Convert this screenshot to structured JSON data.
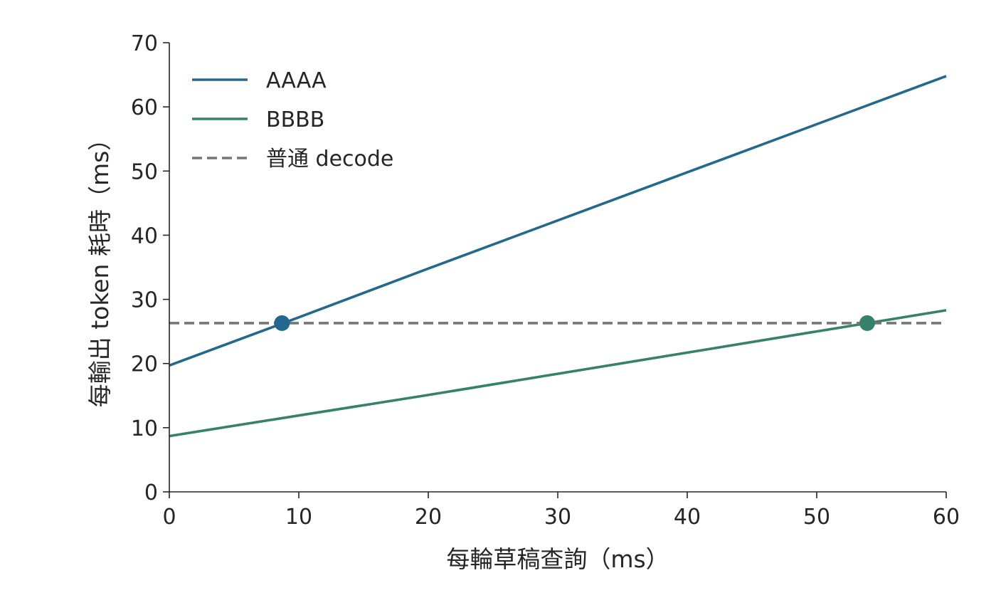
{
  "chart_data": {
    "type": "line",
    "xlabel": "每輪草稿查詢（ms）",
    "ylabel": "每輸出 token 耗時（ms）",
    "xlim": [
      0,
      60
    ],
    "ylim": [
      0,
      70
    ],
    "xticks": [
      0,
      10,
      20,
      30,
      40,
      50,
      60
    ],
    "yticks": [
      0,
      10,
      20,
      30,
      40,
      50,
      60,
      70
    ],
    "grid": false,
    "legend_position": "top-left",
    "series": [
      {
        "name": "AAAA",
        "color": "#23698f",
        "style": "solid",
        "x": [
          0,
          10,
          20,
          30,
          40,
          50,
          60
        ],
        "y": [
          19.7,
          27.2,
          34.8,
          42.3,
          49.8,
          57.3,
          64.8
        ]
      },
      {
        "name": "BBBB",
        "color": "#34826a",
        "style": "solid",
        "x": [
          0,
          10,
          20,
          30,
          40,
          50,
          60
        ],
        "y": [
          8.7,
          11.9,
          15.1,
          18.4,
          21.7,
          25.0,
          28.3
        ]
      },
      {
        "name": "普通 decode",
        "color": "#767676",
        "style": "dashed",
        "x": [
          0,
          60
        ],
        "y": [
          26.3,
          26.3
        ]
      }
    ],
    "markers": [
      {
        "series": "AAAA",
        "x": 8.7,
        "y": 26.3,
        "color": "#23698f"
      },
      {
        "series": "BBBB",
        "x": 53.9,
        "y": 26.3,
        "color": "#34826a"
      }
    ]
  }
}
